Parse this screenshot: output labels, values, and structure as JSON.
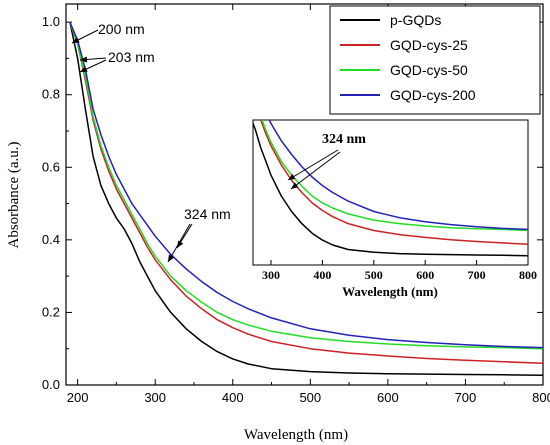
{
  "chart_data": {
    "type": "line",
    "xlabel": "Wavelength (nm)",
    "ylabel": "Absorbance (a.u.)",
    "xlim": [
      185,
      800
    ],
    "ylim": [
      0.0,
      1.05
    ],
    "xticks": [
      200,
      300,
      400,
      500,
      600,
      700,
      800
    ],
    "yticks": [
      0.0,
      0.2,
      0.4,
      0.6,
      0.8,
      1.0
    ],
    "tick_labels_x": [
      "200",
      "300",
      "400",
      "500",
      "600",
      "700",
      "800"
    ],
    "tick_labels_y": [
      "0.0",
      "0.2",
      "0.4",
      "0.6",
      "0.8",
      "1.0"
    ],
    "grid": false,
    "legend_position": "top-right",
    "series": [
      {
        "name": "p-GQDs",
        "color": "#000000",
        "x": [
          190,
          200,
          210,
          220,
          230,
          240,
          250,
          260,
          270,
          280,
          290,
          300,
          320,
          340,
          360,
          380,
          400,
          420,
          450,
          500,
          550,
          600,
          650,
          700,
          750,
          800
        ],
        "y": [
          1.0,
          0.9,
          0.76,
          0.63,
          0.55,
          0.5,
          0.46,
          0.43,
          0.39,
          0.34,
          0.3,
          0.26,
          0.2,
          0.155,
          0.12,
          0.092,
          0.072,
          0.058,
          0.045,
          0.037,
          0.033,
          0.031,
          0.03,
          0.029,
          0.028,
          0.027
        ]
      },
      {
        "name": "GQD-cys-25",
        "color": "#cc2222",
        "x": [
          190,
          200,
          210,
          220,
          230,
          240,
          250,
          260,
          270,
          280,
          290,
          300,
          320,
          340,
          360,
          380,
          400,
          420,
          450,
          500,
          550,
          600,
          650,
          700,
          750,
          800
        ],
        "y": [
          1.0,
          0.94,
          0.84,
          0.73,
          0.65,
          0.59,
          0.54,
          0.5,
          0.46,
          0.42,
          0.38,
          0.345,
          0.29,
          0.245,
          0.21,
          0.18,
          0.158,
          0.14,
          0.12,
          0.1,
          0.088,
          0.08,
          0.073,
          0.068,
          0.064,
          0.06
        ]
      },
      {
        "name": "GQD-cys-50",
        "color": "#22dd22",
        "x": [
          190,
          200,
          210,
          220,
          230,
          240,
          250,
          260,
          270,
          280,
          290,
          300,
          320,
          340,
          360,
          380,
          400,
          420,
          450,
          500,
          550,
          600,
          650,
          700,
          750,
          800
        ],
        "y": [
          1.0,
          0.94,
          0.85,
          0.74,
          0.66,
          0.6,
          0.55,
          0.51,
          0.47,
          0.43,
          0.39,
          0.355,
          0.3,
          0.26,
          0.228,
          0.2,
          0.18,
          0.165,
          0.148,
          0.13,
          0.12,
          0.113,
          0.108,
          0.105,
          0.103,
          0.1
        ]
      },
      {
        "name": "GQD-cys-200",
        "color": "#2222bb",
        "x": [
          190,
          200,
          210,
          220,
          230,
          240,
          250,
          260,
          270,
          280,
          290,
          300,
          320,
          340,
          360,
          380,
          400,
          420,
          450,
          500,
          550,
          600,
          650,
          700,
          750,
          800
        ],
        "y": [
          1.0,
          0.95,
          0.87,
          0.76,
          0.69,
          0.63,
          0.58,
          0.54,
          0.5,
          0.47,
          0.44,
          0.41,
          0.36,
          0.32,
          0.285,
          0.255,
          0.23,
          0.21,
          0.185,
          0.155,
          0.137,
          0.125,
          0.117,
          0.111,
          0.106,
          0.103
        ]
      }
    ],
    "annotations": [
      {
        "text": "200 nm",
        "x": 200,
        "target_x": 190,
        "target_y": 1.0
      },
      {
        "text": "203 nm",
        "x": 203,
        "target_x": 205,
        "target_y": 0.94
      },
      {
        "text": "324 nm",
        "x": 324,
        "target_x": 324,
        "target_y": 0.33
      }
    ],
    "inset": {
      "xlabel": "Wavelength (nm)",
      "xlim": [
        265,
        800
      ],
      "xticks": [
        300,
        400,
        500,
        600,
        700,
        800
      ],
      "tick_labels_x": [
        "300",
        "400",
        "500",
        "600",
        "700",
        "800"
      ],
      "annotation": "324 nm",
      "ylim": [
        0.0,
        0.42
      ]
    }
  }
}
